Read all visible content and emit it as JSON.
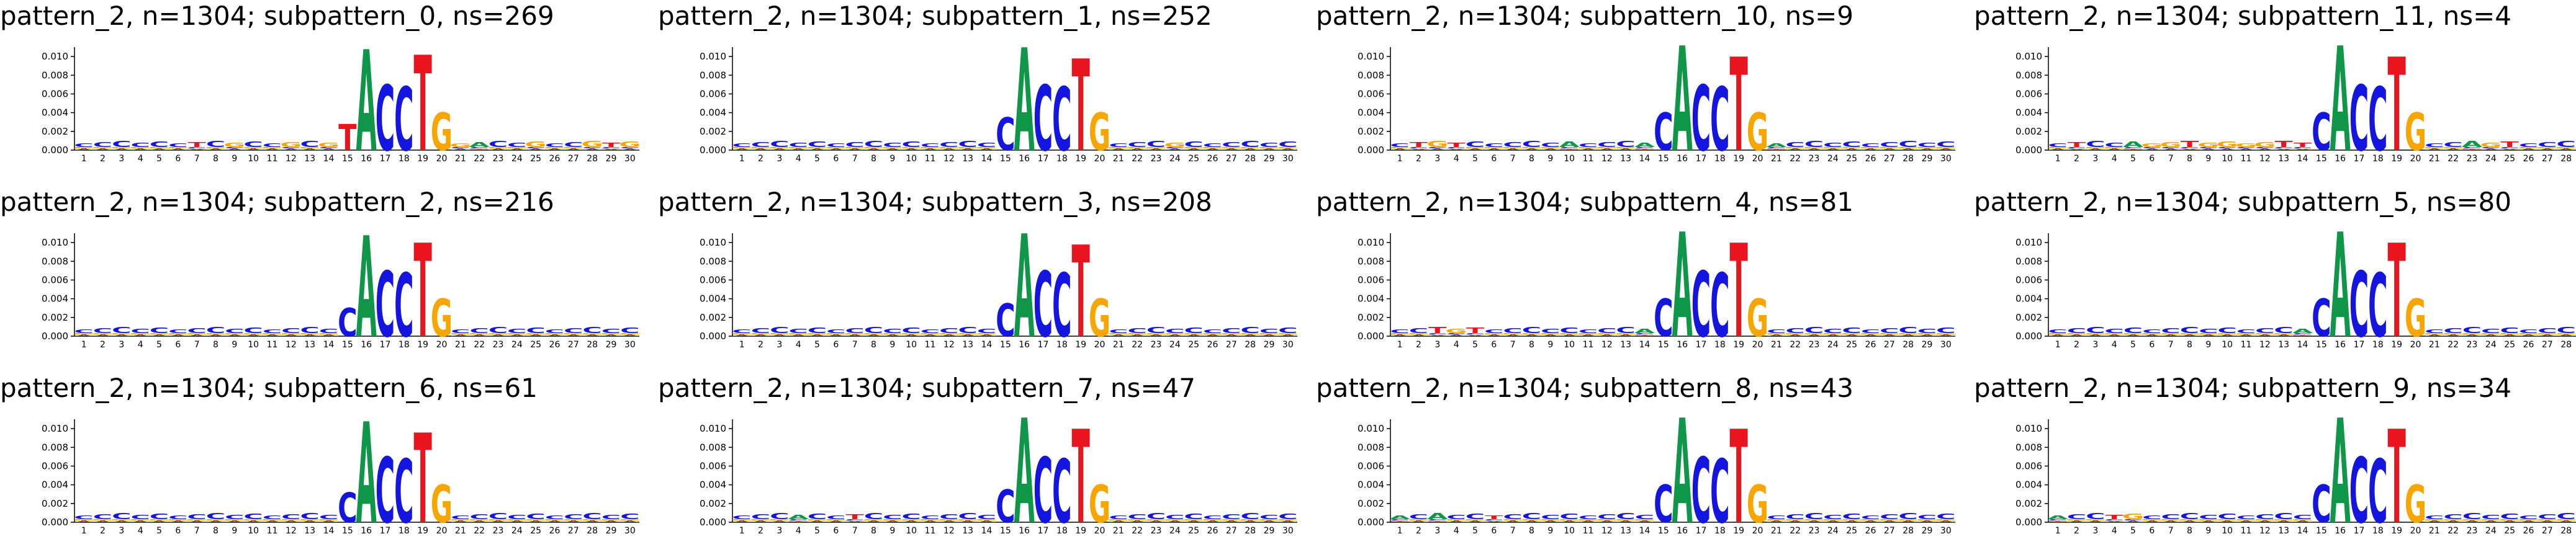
{
  "chart_data": {
    "type": "sequence-logo",
    "ylim": [
      0,
      0.011
    ],
    "yticks": [
      "0.000",
      "0.002",
      "0.004",
      "0.006",
      "0.008",
      "0.010"
    ],
    "positions": [
      "1",
      "2",
      "3",
      "4",
      "5",
      "6",
      "7",
      "8",
      "9",
      "10",
      "11",
      "12",
      "13",
      "14",
      "15",
      "16",
      "17",
      "18",
      "19",
      "20",
      "21",
      "22",
      "23",
      "24",
      "25",
      "26",
      "27",
      "28",
      "29",
      "30"
    ],
    "base_colors": {
      "A": "#109648",
      "C": "#1515e0",
      "G": "#f7a600",
      "T": "#e8141e"
    },
    "panels": [
      {
        "title": "pattern_2, n=1304; subpattern_0, ns=269",
        "motif": {
          "15": [
            [
              "T",
              0.0028
            ]
          ],
          "16": [
            [
              "A",
              0.0108
            ]
          ],
          "17": [
            [
              "C",
              0.007
            ]
          ],
          "18": [
            [
              "C",
              0.0068
            ]
          ],
          "19": [
            [
              "T",
              0.0102
            ]
          ],
          "20": [
            [
              "G",
              0.004
            ]
          ]
        },
        "background": "CCCCCCTCGCCGCGCTCGGCGACCGCCGTGC"
      },
      {
        "title": "pattern_2, n=1304; subpattern_1, ns=252",
        "motif": {
          "15": [
            [
              "C",
              0.0035
            ]
          ],
          "16": [
            [
              "A",
              0.011
            ]
          ],
          "17": [
            [
              "C",
              0.007
            ]
          ],
          "18": [
            [
              "C",
              0.0068
            ]
          ],
          "19": [
            [
              "T",
              0.0098
            ]
          ],
          "20": [
            [
              "G",
              0.004
            ]
          ]
        },
        "background": "CCCCCCCCCCCCCCCCCCCCCCCGCCCCCCC"
      },
      {
        "title": "pattern_2, n=1304; subpattern_10, ns=9",
        "motif": {
          "15": [
            [
              "C",
              0.004
            ]
          ],
          "16": [
            [
              "A",
              0.0112
            ]
          ],
          "17": [
            [
              "C",
              0.007
            ]
          ],
          "18": [
            [
              "C",
              0.0068
            ]
          ],
          "19": [
            [
              "T",
              0.01
            ]
          ],
          "20": [
            [
              "G",
              0.004
            ]
          ]
        },
        "background": "CTGTCCCCCACCCATCCCCCACCCCCCCCCCC"
      },
      {
        "title": "pattern_2, n=1304; subpattern_11, ns=4",
        "motif": {
          "15": [
            [
              "C",
              0.004
            ]
          ],
          "16": [
            [
              "A",
              0.0112
            ]
          ],
          "17": [
            [
              "C",
              0.007
            ]
          ],
          "18": [
            [
              "C",
              0.0068
            ]
          ],
          "19": [
            [
              "T",
              0.01
            ]
          ],
          "20": [
            [
              "G",
              0.004
            ]
          ]
        },
        "background": "CTCCAGGTGGGGTTTCCCCTCCAGTCCCCCC"
      },
      {
        "title": "pattern_2, n=1304; subpattern_2, ns=216",
        "motif": {
          "15": [
            [
              "C",
              0.003
            ]
          ],
          "16": [
            [
              "A",
              0.0108
            ]
          ],
          "17": [
            [
              "C",
              0.007
            ]
          ],
          "18": [
            [
              "C",
              0.0068
            ]
          ],
          "19": [
            [
              "T",
              0.01
            ]
          ],
          "20": [
            [
              "G",
              0.004
            ]
          ]
        },
        "background": "CCCCCCCCCCCCCCCCCCCCCCCCCCCCCCC"
      },
      {
        "title": "pattern_2, n=1304; subpattern_3, ns=208",
        "motif": {
          "15": [
            [
              "C",
              0.0035
            ]
          ],
          "16": [
            [
              "A",
              0.011
            ]
          ],
          "17": [
            [
              "C",
              0.007
            ]
          ],
          "18": [
            [
              "C",
              0.0068
            ]
          ],
          "19": [
            [
              "T",
              0.0098
            ]
          ],
          "20": [
            [
              "G",
              0.004
            ]
          ]
        },
        "background": "CCCCCCCCCCCCCCCCCCCCCCCCCCCCCCC"
      },
      {
        "title": "pattern_2, n=1304; subpattern_4, ns=81",
        "motif": {
          "15": [
            [
              "C",
              0.004
            ]
          ],
          "16": [
            [
              "A",
              0.0112
            ]
          ],
          "17": [
            [
              "C",
              0.007
            ]
          ],
          "18": [
            [
              "C",
              0.0068
            ]
          ],
          "19": [
            [
              "T",
              0.01
            ]
          ],
          "20": [
            [
              "G",
              0.004
            ]
          ]
        },
        "background": "CCTGTCCCCCCCCATCCCCCCCCCCCCCCCC"
      },
      {
        "title": "pattern_2, n=1304; subpattern_5, ns=80",
        "motif": {
          "15": [
            [
              "C",
              0.004
            ]
          ],
          "16": [
            [
              "A",
              0.0112
            ]
          ],
          "17": [
            [
              "C",
              0.007
            ]
          ],
          "18": [
            [
              "C",
              0.0068
            ]
          ],
          "19": [
            [
              "T",
              0.01
            ]
          ],
          "20": [
            [
              "G",
              0.004
            ]
          ]
        },
        "background": "CCCCCCCCCCCCCATCCCCCCCCCCCCCCCC"
      },
      {
        "title": "pattern_2, n=1304; subpattern_6, ns=61",
        "motif": {
          "15": [
            [
              "C",
              0.0032
            ]
          ],
          "16": [
            [
              "A",
              0.0108
            ]
          ],
          "17": [
            [
              "C",
              0.007
            ]
          ],
          "18": [
            [
              "C",
              0.0068
            ]
          ],
          "19": [
            [
              "T",
              0.0096
            ]
          ],
          "20": [
            [
              "G",
              0.004
            ]
          ]
        },
        "background": "CCCCCCCCCCCCCCCCCCCCCCCCCCCCCCC"
      },
      {
        "title": "pattern_2, n=1304; subpattern_7, ns=47",
        "motif": {
          "15": [
            [
              "C",
              0.0035
            ]
          ],
          "16": [
            [
              "A",
              0.0112
            ]
          ],
          "17": [
            [
              "C",
              0.007
            ]
          ],
          "18": [
            [
              "C",
              0.0068
            ]
          ],
          "19": [
            [
              "T",
              0.01
            ]
          ],
          "20": [
            [
              "G",
              0.004
            ]
          ]
        },
        "background": "CCCACCTCCCCCCCCCCCCCCCCCCCCCCCC"
      },
      {
        "title": "pattern_2, n=1304; subpattern_8, ns=43",
        "motif": {
          "15": [
            [
              "C",
              0.004
            ]
          ],
          "16": [
            [
              "A",
              0.0112
            ]
          ],
          "17": [
            [
              "C",
              0.007
            ]
          ],
          "18": [
            [
              "C",
              0.0068
            ]
          ],
          "19": [
            [
              "T",
              0.01
            ]
          ],
          "20": [
            [
              "G",
              0.004
            ]
          ]
        },
        "background": "ACACCTCCCCCCCCCCCCCCCCCCCCCCCCCC"
      },
      {
        "title": "pattern_2, n=1304; subpattern_9, ns=34",
        "motif": {
          "15": [
            [
              "C",
              0.004
            ]
          ],
          "16": [
            [
              "A",
              0.0112
            ]
          ],
          "17": [
            [
              "C",
              0.007
            ]
          ],
          "18": [
            [
              "C",
              0.0068
            ]
          ],
          "19": [
            [
              "T",
              0.01
            ]
          ],
          "20": [
            [
              "G",
              0.004
            ]
          ]
        },
        "background": "ACCTGCCCCCCCCCCTCCCCCCCCCCCCCCC"
      }
    ]
  }
}
